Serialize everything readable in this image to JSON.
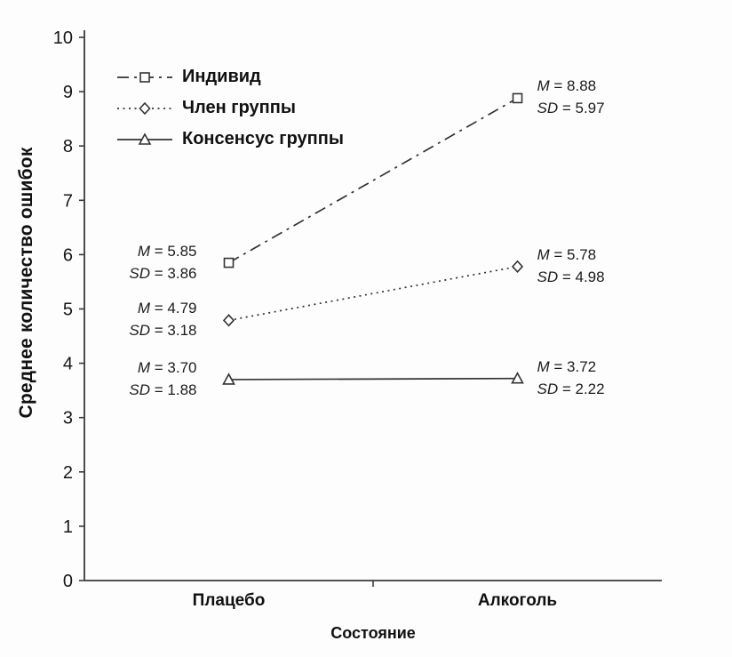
{
  "figure": {
    "background": "#fdfdfd",
    "axis_color": "#3a3a3a",
    "line_color": "#333333",
    "text_color": "#161616"
  },
  "chart_data": {
    "type": "line",
    "title": "",
    "xlabel": "Состояние",
    "ylabel": "Среднее количество ошибок",
    "categories": [
      "Плацебо",
      "Алкоголь"
    ],
    "ylim": [
      0,
      10
    ],
    "ytick_step": 1,
    "grid": false,
    "legend_position": "top-left-inside",
    "series": [
      {
        "id": "individual",
        "name": "Индивид",
        "marker": "square",
        "line_style": "dash-dot",
        "values": [
          5.85,
          8.88
        ],
        "sd": [
          3.86,
          5.97
        ],
        "annotations": [
          {
            "m": "M = 5.85",
            "sd": "SD = 3.86",
            "side": "left"
          },
          {
            "m": "M = 8.88",
            "sd": "SD = 5.97",
            "side": "right"
          }
        ]
      },
      {
        "id": "group-member",
        "name": "Член группы",
        "marker": "diamond",
        "line_style": "dotted",
        "values": [
          4.79,
          5.78
        ],
        "sd": [
          3.18,
          4.98
        ],
        "annotations": [
          {
            "m": "M = 4.79",
            "sd": "SD = 3.18",
            "side": "left"
          },
          {
            "m": "M = 5.78",
            "sd": "SD = 4.98",
            "side": "right"
          }
        ]
      },
      {
        "id": "group-consensus",
        "name": "Консенсус группы",
        "marker": "triangle",
        "line_style": "solid",
        "values": [
          3.7,
          3.72
        ],
        "sd": [
          1.88,
          2.22
        ],
        "annotations": [
          {
            "m": "M = 3.70",
            "sd": "SD = 1.88",
            "side": "left"
          },
          {
            "m": "M = 3.72",
            "sd": "SD = 2.22",
            "side": "right"
          }
        ]
      }
    ]
  }
}
